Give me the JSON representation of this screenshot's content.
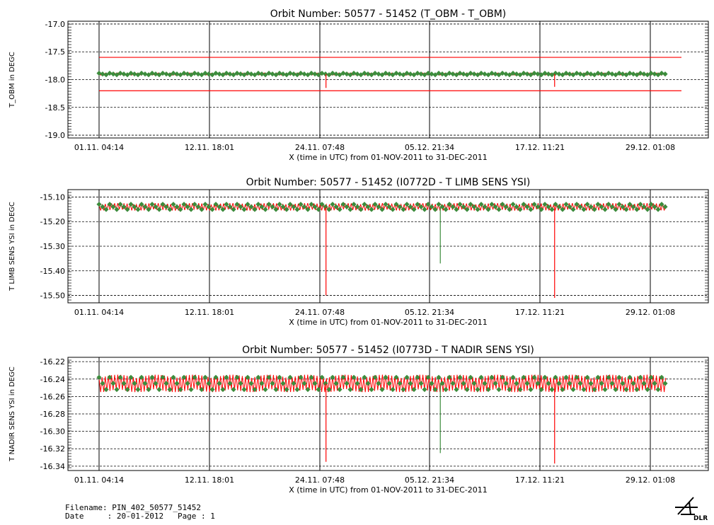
{
  "chart_data": [
    {
      "type": "line",
      "title": "Orbit Number: 50577 - 51452 (T_OBM - T_OBM)",
      "xlabel": "X (time in UTC) from 01-NOV-2011 to 31-DEC-2011",
      "ylabel": "T_OBM in DEGC",
      "x_tick_labels": [
        "01.11. 04:14",
        "12.11. 18:01",
        "24.11. 07:48",
        "05.12. 21:34",
        "17.12. 11:21",
        "29.12. 01:08"
      ],
      "xlim": [
        "01.11. 04:14",
        "31.12. 00:00"
      ],
      "ylim": [
        -19.05,
        -16.95
      ],
      "y_ticks": [
        -19.0,
        -18.5,
        -18.0,
        -17.5,
        -17.0
      ],
      "y_tick_labels": [
        "-19.0",
        "-18.5",
        "-18.0",
        "-17.5",
        "-17.0"
      ],
      "grid": true,
      "limit_lines": [
        -17.6,
        -18.2
      ],
      "series": [
        {
          "color": "#ff0000",
          "values": {
            "x_range": [
              "01.11. 04:14",
              "30.12. 18:00"
            ],
            "center": -17.9,
            "amplitude": 0.02
          }
        },
        {
          "color": "#3c8c3c",
          "values": {
            "x_range": [
              "01.11. 04:14",
              "30.12. 18:00"
            ],
            "center": -17.9,
            "amplitude": 0.02
          }
        }
      ],
      "spikes": [
        {
          "x": "25.11. 00:00",
          "y": -18.15,
          "color": "#ff0000"
        },
        {
          "x": "19.12. 00:00",
          "y": -18.13,
          "color": "#ff0000"
        }
      ]
    },
    {
      "type": "line",
      "title": "Orbit Number: 50577 - 51452 (I0772D - T LIMB SENS YSI)",
      "xlabel": "X (time in UTC) from 01-NOV-2011 to 31-DEC-2011",
      "ylabel": "T LIMB SENS YSI in DEGC",
      "x_tick_labels": [
        "01.11. 04:14",
        "12.11. 18:01",
        "24.11. 07:48",
        "05.12. 21:34",
        "17.12. 11:21",
        "29.12. 01:08"
      ],
      "xlim": [
        "01.11. 04:14",
        "31.12. 00:00"
      ],
      "ylim": [
        -15.53,
        -15.07
      ],
      "y_ticks": [
        -15.5,
        -15.4,
        -15.3,
        -15.2,
        -15.1
      ],
      "y_tick_labels": [
        "-15.50",
        "-15.40",
        "-15.30",
        "-15.20",
        "-15.10"
      ],
      "grid": true,
      "series": [
        {
          "color": "#ff0000",
          "values": {
            "x_range": [
              "01.11. 04:14",
              "30.12. 18:00"
            ],
            "center": -15.14,
            "amplitude": 0.015
          }
        },
        {
          "color": "#3c8c3c",
          "values": {
            "x_range": [
              "01.11. 04:14",
              "30.12. 18:00"
            ],
            "center": -15.14,
            "amplitude": 0.015
          }
        }
      ],
      "spikes": [
        {
          "x": "25.11. 00:00",
          "y": -15.5,
          "color": "#ff0000"
        },
        {
          "x": "07.12. 00:00",
          "y": -15.37,
          "color": "#3c8c3c"
        },
        {
          "x": "19.12. 00:00",
          "y": -15.51,
          "color": "#ff0000"
        }
      ]
    },
    {
      "type": "line",
      "title": "Orbit Number: 50577 - 51452 (I0773D - T NADIR SENS YSI)",
      "xlabel": "X (time in UTC) from 01-NOV-2011 to 31-DEC-2011",
      "ylabel": "T NADIR SENS YSI in DEGC",
      "x_tick_labels": [
        "01.11. 04:14",
        "12.11. 18:01",
        "24.11. 07:48",
        "05.12. 21:34",
        "17.12. 11:21",
        "29.12. 01:08"
      ],
      "xlim": [
        "01.11. 04:14",
        "31.12. 00:00"
      ],
      "ylim": [
        -16.345,
        -16.215
      ],
      "y_ticks": [
        -16.34,
        -16.32,
        -16.3,
        -16.28,
        -16.26,
        -16.24,
        -16.22
      ],
      "y_tick_labels": [
        "-16.34",
        "-16.32",
        "-16.30",
        "-16.28",
        "-16.26",
        "-16.24",
        "-16.22"
      ],
      "grid": true,
      "series": [
        {
          "color": "#ff0000",
          "values": {
            "x_range": [
              "01.11. 04:14",
              "30.12. 18:00"
            ],
            "center": -16.245,
            "amplitude": 0.01
          }
        },
        {
          "color": "#3c8c3c",
          "values": {
            "x_range": [
              "01.11. 04:14",
              "30.12. 18:00"
            ],
            "center": -16.245,
            "amplitude": 0.01
          }
        }
      ],
      "spikes": [
        {
          "x": "25.11. 00:00",
          "y": -16.335,
          "color": "#ff0000"
        },
        {
          "x": "07.12. 00:00",
          "y": -16.325,
          "color": "#3c8c3c"
        },
        {
          "x": "19.12. 00:00",
          "y": -16.337,
          "color": "#ff0000"
        }
      ]
    }
  ],
  "footer": {
    "filename_line": "Filename: PIN_402_50577_51452",
    "date_line": "Date     : 20-01-2012   Page : 1"
  },
  "logo": {
    "text": "DLR",
    "icon": "dlr-logo-icon"
  }
}
